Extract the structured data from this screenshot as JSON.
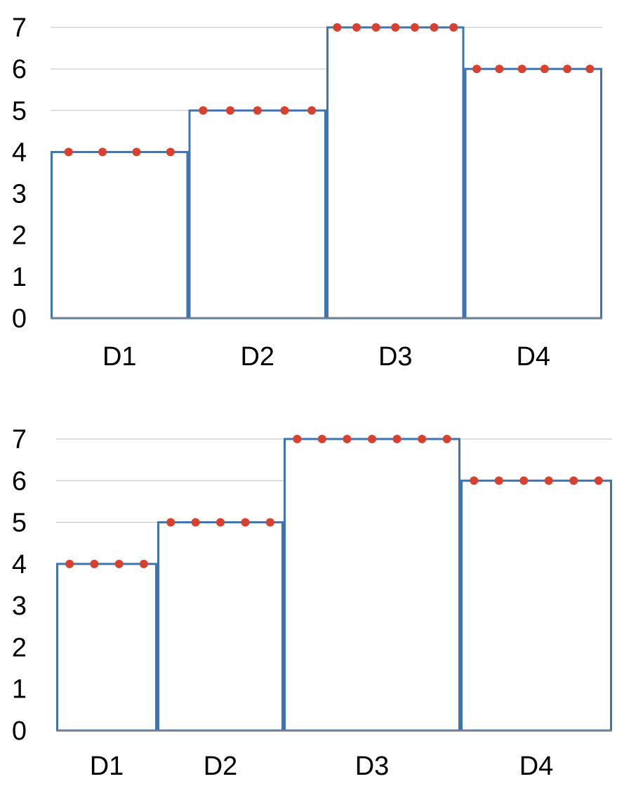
{
  "colors": {
    "bar_stroke": "#3d74b1",
    "bar_fill": "#ffffff",
    "dot": "#d9412f",
    "grid": "#bfbfbf",
    "axis": "#7f7f7f"
  },
  "chart_data": [
    {
      "type": "bar",
      "categories": [
        "D1",
        "D2",
        "D3",
        "D4"
      ],
      "values": [
        4,
        5,
        7,
        6
      ],
      "widths": [
        1,
        1,
        1,
        1
      ],
      "dot_counts": [
        4,
        5,
        7,
        6
      ],
      "yticks": [
        "0",
        "1",
        "2",
        "3",
        "4",
        "5",
        "6",
        "7"
      ],
      "ylim": [
        0,
        7
      ],
      "grid": true,
      "title": "",
      "xlabel": "",
      "ylabel": ""
    },
    {
      "type": "bar",
      "categories": [
        "D1",
        "D2",
        "D3",
        "D4"
      ],
      "values": [
        4,
        5,
        7,
        6
      ],
      "widths": [
        4,
        5,
        7,
        6
      ],
      "dot_counts": [
        4,
        5,
        7,
        6
      ],
      "yticks": [
        "0",
        "1",
        "2",
        "3",
        "4",
        "5",
        "6",
        "7"
      ],
      "ylim": [
        0,
        7
      ],
      "grid": true,
      "title": "",
      "xlabel": "",
      "ylabel": ""
    }
  ]
}
